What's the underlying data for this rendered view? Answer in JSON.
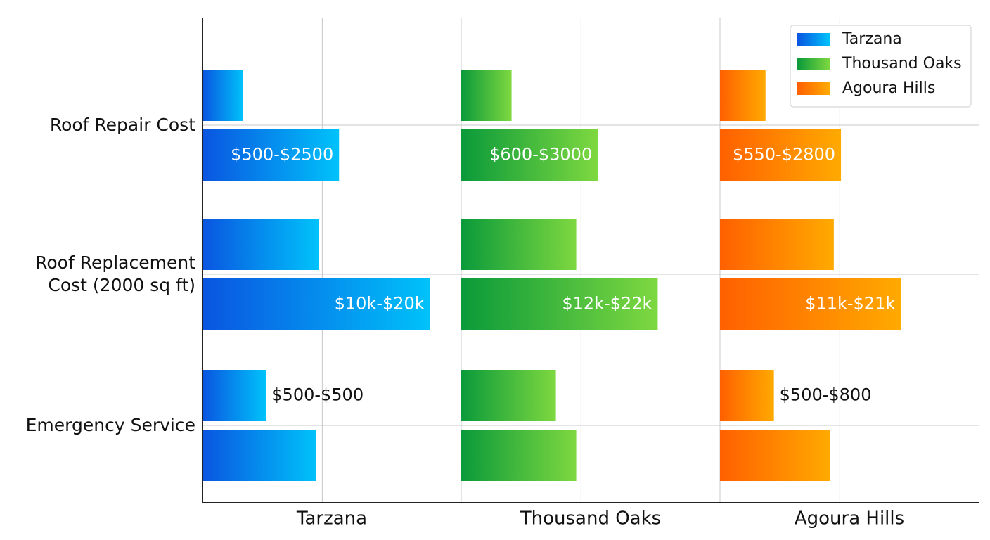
{
  "chart_data": {
    "type": "bar",
    "categories": [
      "Roof Repair Cost",
      "Roof Replacement Cost (2000 sq ft)",
      "Emergency Service"
    ],
    "xlim": [
      0,
      2.16
    ],
    "xticks": [
      1
    ],
    "grid": true,
    "legend": "top-right",
    "series": [
      {
        "name": "Tarzana",
        "colors": [
          "#0a55e0",
          "#00c2fa"
        ],
        "low": [
          0.34,
          0.97,
          0.53
        ],
        "high": [
          1.14,
          1.9,
          0.95
        ],
        "value_labels": [
          "$500-$2500",
          "$10k-$20k",
          "$500-$500"
        ]
      },
      {
        "name": "Thousand Oaks",
        "colors": [
          "#0a9a3a",
          "#7ed840"
        ],
        "low": [
          0.42,
          0.96,
          0.79
        ],
        "high": [
          1.14,
          1.64,
          0.96
        ],
        "value_labels": [
          "$600-$3000",
          "$12k-$22k",
          null
        ]
      },
      {
        "name": "Agoura Hills",
        "colors": [
          "#ff6000",
          "#ffaa00"
        ],
        "low": [
          0.38,
          0.95,
          0.45
        ],
        "high": [
          1.01,
          1.51,
          0.92
        ],
        "value_labels": [
          "$550-$2800",
          "$11k-$21k",
          "$500-$800"
        ]
      }
    ]
  }
}
